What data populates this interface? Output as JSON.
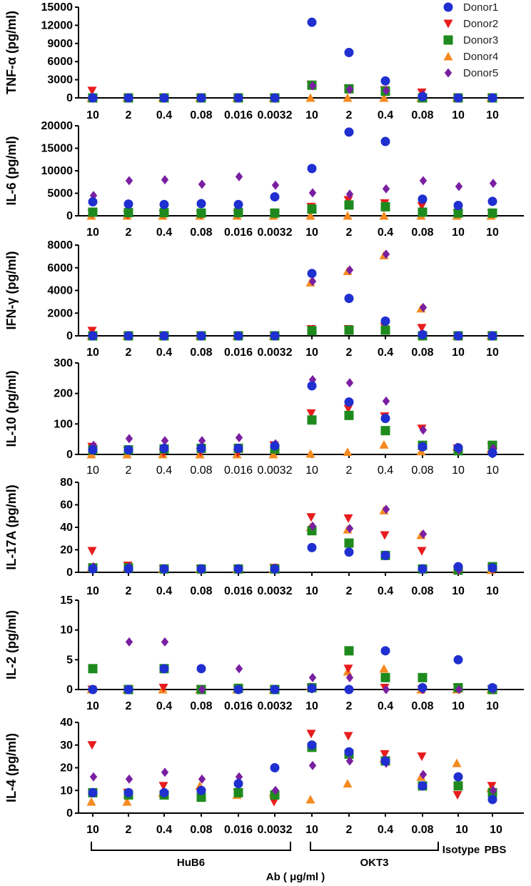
{
  "chart_data": {
    "type": "scatter",
    "categories": [
      "10",
      "2",
      "0.4",
      "0.08",
      "0.016",
      "0.0032",
      "10",
      "2",
      "0.4",
      "0.08",
      "10",
      "10"
    ],
    "groups": [
      {
        "label": "HuB6",
        "from": 0,
        "to": 5
      },
      {
        "label": "OKT3",
        "from": 6,
        "to": 9
      }
    ],
    "bottom_single_labels": [
      {
        "index": 10,
        "label": "Isotype"
      },
      {
        "index": 11,
        "label": "PBS"
      }
    ],
    "xlabel": "Ab ( μg/ml )",
    "legend": [
      {
        "name": "Donor1",
        "color": "#1f2fd0",
        "marker": "circle"
      },
      {
        "name": "Donor2",
        "color": "#e81c1c",
        "marker": "triangle-down"
      },
      {
        "name": "Donor3",
        "color": "#1e8a1e",
        "marker": "square"
      },
      {
        "name": "Donor4",
        "color": "#f58a1f",
        "marker": "triangle-up"
      },
      {
        "name": "Donor5",
        "color": "#7a1fa2",
        "marker": "diamond"
      }
    ],
    "panels": [
      {
        "ylabel": "TNF-α  (pg/ml)",
        "ylim": [
          0,
          15000
        ],
        "yticks": [
          0,
          3000,
          6000,
          9000,
          12000,
          15000
        ],
        "series": [
          {
            "name": "Donor1",
            "values": [
              0,
              0,
              0,
              0,
              0,
              0,
              12500,
              7500,
              2800,
              200,
              0,
              0
            ]
          },
          {
            "name": "Donor2",
            "values": [
              1200,
              0,
              0,
              0,
              0,
              0,
              2200,
              1500,
              1300,
              900,
              0,
              0
            ]
          },
          {
            "name": "Donor3",
            "values": [
              0,
              0,
              0,
              0,
              0,
              0,
              2100,
              1500,
              1100,
              0,
              0,
              0
            ]
          },
          {
            "name": "Donor4",
            "values": [
              0,
              0,
              0,
              0,
              0,
              0,
              0,
              0,
              0,
              0,
              0,
              0
            ]
          },
          {
            "name": "Donor5",
            "values": [
              0,
              0,
              0,
              0,
              0,
              0,
              2000,
              1400,
              1200,
              500,
              0,
              0
            ]
          }
        ]
      },
      {
        "ylabel": "IL-6 (pg/ml)",
        "ylim": [
          0,
          20000
        ],
        "yticks": [
          0,
          5000,
          10000,
          15000,
          20000
        ],
        "series": [
          {
            "name": "Donor1",
            "values": [
              3100,
              2600,
              2500,
              2700,
              2500,
              4200,
              10500,
              18600,
              16500,
              3700,
              2300,
              3200
            ]
          },
          {
            "name": "Donor2",
            "values": [
              500,
              200,
              400,
              300,
              400,
              500,
              2000,
              3500,
              2800,
              2200,
              500,
              500
            ]
          },
          {
            "name": "Donor3",
            "values": [
              800,
              700,
              700,
              600,
              700,
              600,
              1500,
              2400,
              2000,
              800,
              600,
              600
            ]
          },
          {
            "name": "Donor4",
            "values": [
              0,
              0,
              0,
              0,
              0,
              0,
              0,
              0,
              0,
              0,
              0,
              0
            ]
          },
          {
            "name": "Donor5",
            "values": [
              4500,
              7800,
              8000,
              7000,
              8700,
              6800,
              5100,
              4800,
              6000,
              7800,
              6500,
              7200
            ]
          }
        ]
      },
      {
        "ylabel": "IFN-γ (pg/ml)",
        "ylim": [
          0,
          8000
        ],
        "yticks": [
          0,
          2000,
          4000,
          6000,
          8000
        ],
        "series": [
          {
            "name": "Donor1",
            "values": [
              0,
              0,
              0,
              0,
              0,
              0,
              5500,
              3300,
              1300,
              100,
              0,
              0
            ]
          },
          {
            "name": "Donor2",
            "values": [
              450,
              0,
              0,
              0,
              0,
              0,
              600,
              600,
              800,
              700,
              0,
              0
            ]
          },
          {
            "name": "Donor3",
            "values": [
              0,
              0,
              0,
              0,
              0,
              0,
              450,
              500,
              500,
              0,
              0,
              0
            ]
          },
          {
            "name": "Donor4",
            "values": [
              0,
              0,
              0,
              0,
              0,
              0,
              4700,
              5700,
              7100,
              2400,
              0,
              0
            ]
          },
          {
            "name": "Donor5",
            "values": [
              0,
              0,
              0,
              0,
              0,
              0,
              4800,
              5800,
              7200,
              2500,
              0,
              0
            ]
          }
        ]
      },
      {
        "ylabel": "IL-10  (pg/ml)",
        "ylim": [
          0,
          300
        ],
        "yticks": [
          0,
          100,
          200,
          300
        ],
        "tick_weight": "normal",
        "series": [
          {
            "name": "Donor1",
            "values": [
              15,
              15,
              20,
              20,
              20,
              28,
              225,
              172,
              118,
              25,
              22,
              5
            ]
          },
          {
            "name": "Donor2",
            "values": [
              25,
              12,
              5,
              8,
              5,
              30,
              135,
              150,
              125,
              85,
              20,
              25
            ]
          },
          {
            "name": "Donor3",
            "values": [
              15,
              15,
              18,
              20,
              20,
              18,
              113,
              128,
              78,
              30,
              12,
              30
            ]
          },
          {
            "name": "Donor4",
            "values": [
              0,
              0,
              0,
              0,
              0,
              0,
              2,
              8,
              32,
              10,
              25,
              18
            ]
          },
          {
            "name": "Donor5",
            "values": [
              30,
              52,
              45,
              45,
              55,
              35,
              245,
              235,
              175,
              80,
              15,
              20
            ]
          }
        ]
      },
      {
        "ylabel": "IL-17A (pg/ml)",
        "ylim": [
          0,
          80
        ],
        "yticks": [
          0,
          20,
          40,
          60,
          80
        ],
        "series": [
          {
            "name": "Donor1",
            "values": [
              3,
              3,
              3,
              3,
              3,
              3,
              22,
              18,
              15,
              3,
              5,
              4
            ]
          },
          {
            "name": "Donor2",
            "values": [
              19,
              6,
              3,
              3,
              3,
              4,
              49,
              48,
              33,
              19,
              2,
              3
            ]
          },
          {
            "name": "Donor3",
            "values": [
              4,
              4,
              3,
              3,
              3,
              3,
              37,
              26,
              15,
              3,
              2,
              5
            ]
          },
          {
            "name": "Donor4",
            "values": [
              4,
              4,
              3,
              3,
              3,
              3,
              40,
              38,
              55,
              33,
              2,
              2
            ]
          },
          {
            "name": "Donor5",
            "values": [
              5,
              5,
              3,
              3,
              3,
              4,
              41,
              39,
              56,
              34,
              2,
              3
            ]
          }
        ]
      },
      {
        "ylabel": "IL-2 (pg/ml)",
        "ylim": [
          0,
          15
        ],
        "yticks": [
          0,
          5,
          10,
          15
        ],
        "series": [
          {
            "name": "Donor1",
            "values": [
              0,
              0,
              3.5,
              3.5,
              0,
              0,
              0.2,
              0,
              6.5,
              0.3,
              5,
              0.3
            ]
          },
          {
            "name": "Donor2",
            "values": [
              0,
              0,
              0.3,
              0,
              0,
              0,
              0.3,
              3.5,
              0.3,
              0,
              0.3,
              0
            ]
          },
          {
            "name": "Donor3",
            "values": [
              3.5,
              0,
              3.5,
              0,
              0.2,
              0,
              0.3,
              6.5,
              2,
              2,
              0.3,
              0
            ]
          },
          {
            "name": "Donor4",
            "values": [
              0,
              0,
              0,
              0,
              0,
              0,
              0.5,
              3,
              3.5,
              0,
              0,
              0
            ]
          },
          {
            "name": "Donor5",
            "values": [
              0,
              8,
              8,
              0,
              3.5,
              0,
              2,
              2,
              0,
              0,
              0,
              0
            ]
          }
        ]
      },
      {
        "ylabel": "IL-4 (pg/ml)",
        "ylim": [
          0,
          40
        ],
        "yticks": [
          0,
          10,
          20,
          30,
          40
        ],
        "series": [
          {
            "name": "Donor1",
            "values": [
              9,
              9,
              9,
              10,
              13,
              20,
              30,
              27,
              23,
              12,
              16,
              6
            ]
          },
          {
            "name": "Donor2",
            "values": [
              30,
              9,
              12,
              9,
              9,
              5,
              35,
              34,
              26,
              25,
              8,
              12
            ]
          },
          {
            "name": "Donor3",
            "values": [
              9,
              8,
              8,
              7,
              9,
              8,
              29,
              26,
              23,
              12,
              12,
              9
            ]
          },
          {
            "name": "Donor4",
            "values": [
              5,
              5,
              9,
              12,
              8,
              9,
              6,
              13,
              24,
              16,
              22,
              11
            ]
          },
          {
            "name": "Donor5",
            "values": [
              16,
              15,
              18,
              15,
              16,
              10,
              21,
              23,
              22,
              17,
              16,
              10
            ]
          }
        ]
      }
    ]
  }
}
